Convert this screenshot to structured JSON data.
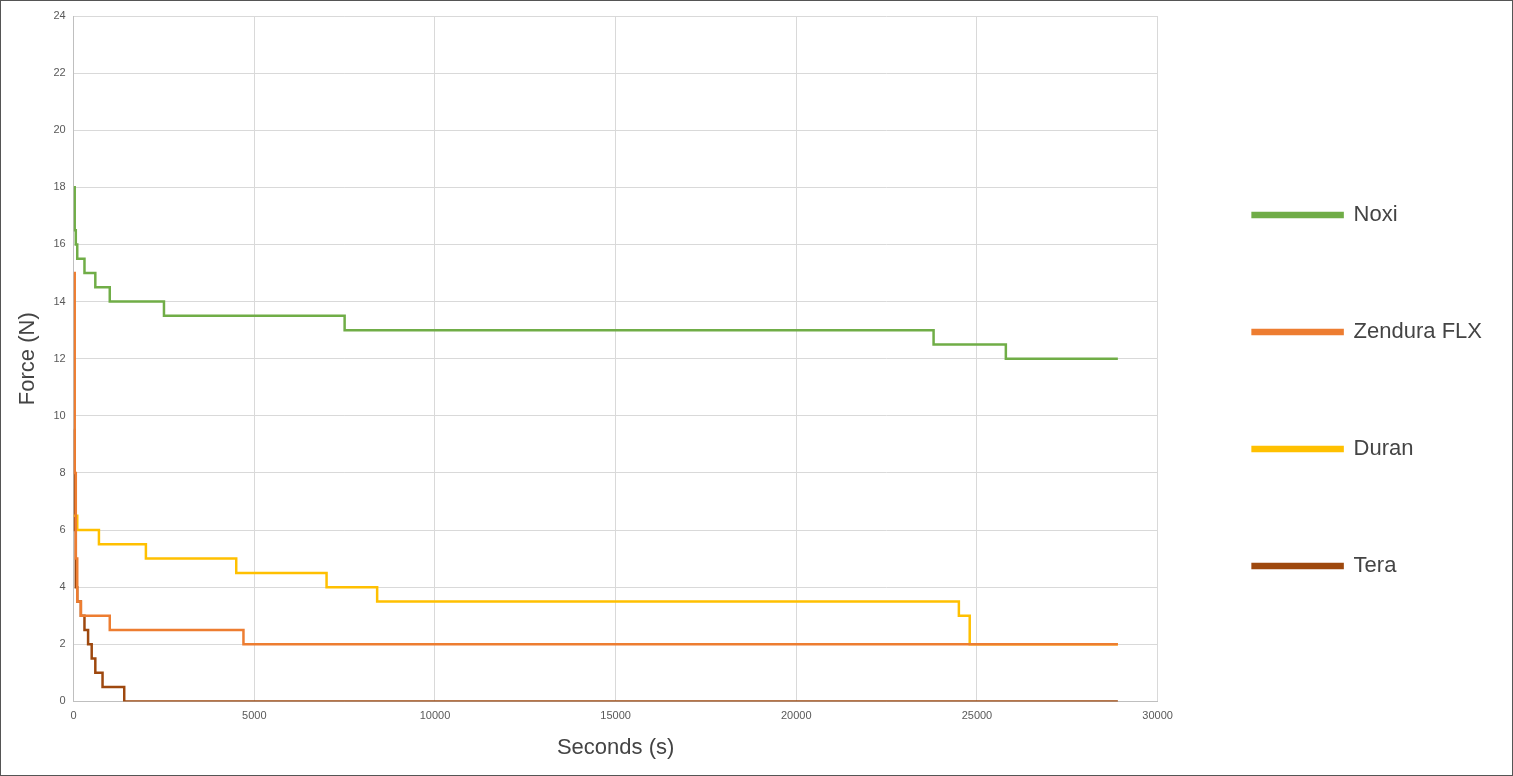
{
  "chart_data": {
    "type": "line",
    "x_label": "Seconds (s)",
    "y_label": "Force (N)",
    "x": [
      0,
      30,
      60,
      100,
      200,
      300,
      400,
      500,
      600,
      700,
      800,
      1000,
      1400,
      2000,
      2500,
      4500,
      4700,
      7000,
      7500,
      8400,
      15000,
      23000,
      23800,
      24500,
      24800,
      25800,
      28900
    ],
    "series": [
      {
        "name": "Noxi",
        "color": "#70ad47",
        "line_style": "stepped",
        "values": [
          18,
          16.5,
          16,
          15.5,
          15.5,
          15,
          15,
          15,
          14.5,
          14.5,
          14.5,
          14,
          14,
          14,
          13.5,
          13.5,
          13.5,
          13.5,
          13,
          13,
          13,
          13,
          12.5,
          12.5,
          12.5,
          12,
          12
        ]
      },
      {
        "name": "Zendura FLX",
        "color": "#ed7d31",
        "line_style": "stepped",
        "values": [
          15,
          8,
          5,
          3.5,
          3,
          3,
          3,
          3,
          3,
          3,
          3,
          2.5,
          2.5,
          2.5,
          2.5,
          2.5,
          2,
          2,
          2,
          2,
          2,
          2,
          2,
          2,
          2,
          2,
          2
        ]
      },
      {
        "name": "Duran",
        "color": "#ffc000",
        "line_style": "stepped",
        "values": [
          6.5,
          6.5,
          6.5,
          6,
          6,
          6,
          6,
          6,
          6,
          5.5,
          5.5,
          5.5,
          5.5,
          5,
          5,
          4.5,
          4.5,
          4,
          4,
          3.5,
          3.5,
          3.5,
          3.5,
          3,
          2,
          2,
          2
        ]
      },
      {
        "name": "Tera",
        "color": "#9e480e",
        "line_style": "stepped",
        "values": [
          9.5,
          6,
          4,
          3.5,
          3,
          2.5,
          2,
          1.5,
          1,
          1,
          0.5,
          0.5,
          0,
          0,
          0,
          0,
          0,
          0,
          0,
          0,
          0,
          0,
          0,
          0,
          0,
          0,
          0
        ]
      }
    ],
    "xlim": [
      0,
      30000
    ],
    "xticks": [
      0,
      5000,
      10000,
      15000,
      20000,
      25000,
      30000
    ],
    "ylim": [
      0,
      24
    ],
    "yticks": [
      0,
      2,
      4,
      6,
      8,
      10,
      12,
      14,
      16,
      18,
      20,
      22,
      24
    ],
    "grid": true,
    "legend": "right"
  }
}
